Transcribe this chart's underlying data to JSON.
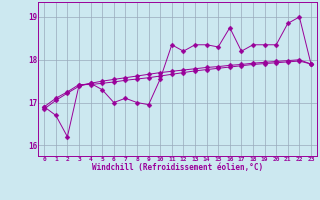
{
  "x_values": [
    0,
    1,
    2,
    3,
    4,
    5,
    6,
    7,
    8,
    9,
    10,
    11,
    12,
    13,
    14,
    15,
    16,
    17,
    18,
    19,
    20,
    21,
    22,
    23
  ],
  "series1": [
    16.9,
    16.7,
    16.2,
    17.4,
    17.45,
    17.3,
    17.0,
    17.1,
    17.0,
    16.95,
    17.55,
    18.35,
    18.2,
    18.35,
    18.35,
    18.3,
    18.75,
    18.2,
    18.35,
    18.35,
    18.35,
    18.85,
    19.0,
    17.9
  ],
  "series2": [
    16.9,
    17.1,
    17.25,
    17.42,
    17.42,
    17.45,
    17.48,
    17.52,
    17.55,
    17.58,
    17.62,
    17.66,
    17.7,
    17.74,
    17.77,
    17.8,
    17.83,
    17.86,
    17.89,
    17.91,
    17.93,
    17.95,
    17.97,
    17.9
  ],
  "series3": [
    16.85,
    17.05,
    17.22,
    17.38,
    17.45,
    17.5,
    17.54,
    17.58,
    17.62,
    17.66,
    17.7,
    17.73,
    17.76,
    17.79,
    17.82,
    17.84,
    17.87,
    17.89,
    17.92,
    17.94,
    17.96,
    17.98,
    18.0,
    17.9
  ],
  "ylim": [
    15.75,
    19.35
  ],
  "yticks": [
    16,
    17,
    18,
    19
  ],
  "xticks": [
    0,
    1,
    2,
    3,
    4,
    5,
    6,
    7,
    8,
    9,
    10,
    11,
    12,
    13,
    14,
    15,
    16,
    17,
    18,
    19,
    20,
    21,
    22,
    23
  ],
  "xlabel": "Windchill (Refroidissement éolien,°C)",
  "line_color": "#990099",
  "bg_color": "#cce8f0",
  "grid_color": "#99aabb",
  "marker": "D",
  "marker_size": 2.5,
  "linewidth": 0.7
}
